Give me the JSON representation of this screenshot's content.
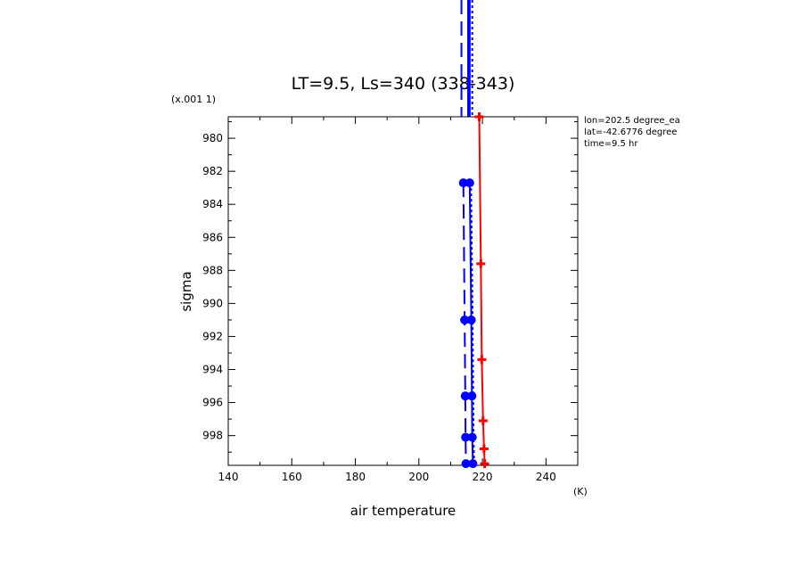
{
  "chart_data": {
    "type": "line",
    "title": "LT=9.5, Ls=340 (338-343)",
    "xlabel": "air temperature",
    "xunit": "(K)",
    "ylabel": "sigma",
    "yscale_note": "(x.001 1)",
    "xlim": [
      140,
      250
    ],
    "ylim": [
      999.8,
      978.7
    ],
    "x_ticks": [
      140,
      160,
      180,
      200,
      220,
      240
    ],
    "y_ticks": [
      980,
      982,
      984,
      986,
      988,
      990,
      992,
      994,
      996,
      998
    ],
    "info": [
      "lon=202.5 degree_ea",
      "lat=-42.6776 degree",
      "time=9.5 hr"
    ],
    "colors": {
      "red": "#ff0000",
      "blue": "#0000ff"
    },
    "series": [
      {
        "color": "red",
        "style": "solid",
        "marker": "plus",
        "points": [
          [
            219.0,
            978.7
          ],
          [
            219.5,
            987.6
          ],
          [
            219.8,
            993.4
          ],
          [
            220.2,
            997.1
          ],
          [
            220.5,
            998.8
          ],
          [
            220.7,
            999.7
          ]
        ]
      },
      {
        "color": "blue",
        "style": "solid",
        "marker": "circle",
        "points": [
          [
            216.0,
            982.7
          ],
          [
            216.5,
            991.0
          ],
          [
            216.7,
            995.6
          ],
          [
            216.8,
            998.1
          ],
          [
            217.0,
            999.7
          ]
        ]
      },
      {
        "color": "blue",
        "style": "long-dash",
        "marker": "circle",
        "points": [
          [
            214.0,
            982.7
          ],
          [
            214.4,
            991.0
          ],
          [
            214.6,
            995.6
          ],
          [
            214.7,
            998.1
          ],
          [
            214.8,
            999.7
          ]
        ]
      },
      {
        "color": "blue",
        "style": "short-dash",
        "marker": "none",
        "points": [
          [
            216.4,
            982.7
          ],
          [
            216.9,
            991.0
          ],
          [
            217.1,
            995.6
          ],
          [
            217.2,
            998.1
          ],
          [
            217.4,
            999.7
          ]
        ]
      }
    ],
    "above_plot_lines": [
      {
        "color": "blue",
        "style": "long-dash",
        "x": 213.4
      },
      {
        "color": "blue",
        "style": "solid",
        "x": 215.5
      },
      {
        "color": "blue",
        "style": "solid",
        "x": 216.0
      },
      {
        "color": "blue",
        "style": "short-dash",
        "x": 216.8
      }
    ]
  }
}
